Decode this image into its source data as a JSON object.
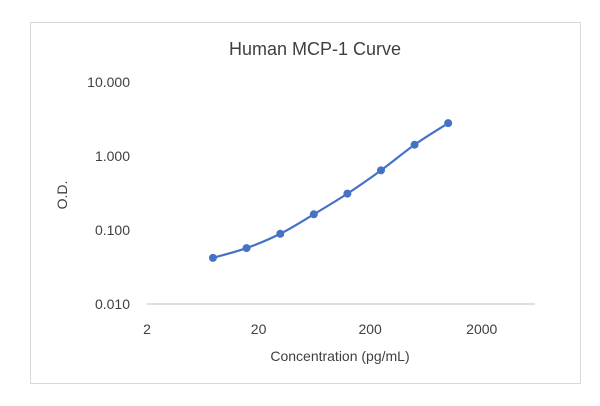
{
  "colors": {
    "series": "#4472c4",
    "axis": "#bfbfbf",
    "text": "#404040"
  },
  "chart_data": {
    "type": "line",
    "title": "Human MCP-1 Curve",
    "xlabel": "Concentration (pg/mL)",
    "ylabel": "O.D.",
    "x_scale": "log",
    "y_scale": "log",
    "xlim": [
      2,
      6000
    ],
    "ylim": [
      0.01,
      10
    ],
    "x_ticks": [
      "2",
      "20",
      "200",
      "2000"
    ],
    "y_ticks": [
      "0.010",
      "0.100",
      "1.000",
      "10.000"
    ],
    "grid": false,
    "legend": "none",
    "series": [
      {
        "x": [
          7.8,
          15.6,
          31.3,
          62.5,
          125,
          250,
          500,
          1000
        ],
        "y": [
          0.042,
          0.057,
          0.089,
          0.163,
          0.31,
          0.64,
          1.42,
          2.78
        ]
      }
    ]
  }
}
